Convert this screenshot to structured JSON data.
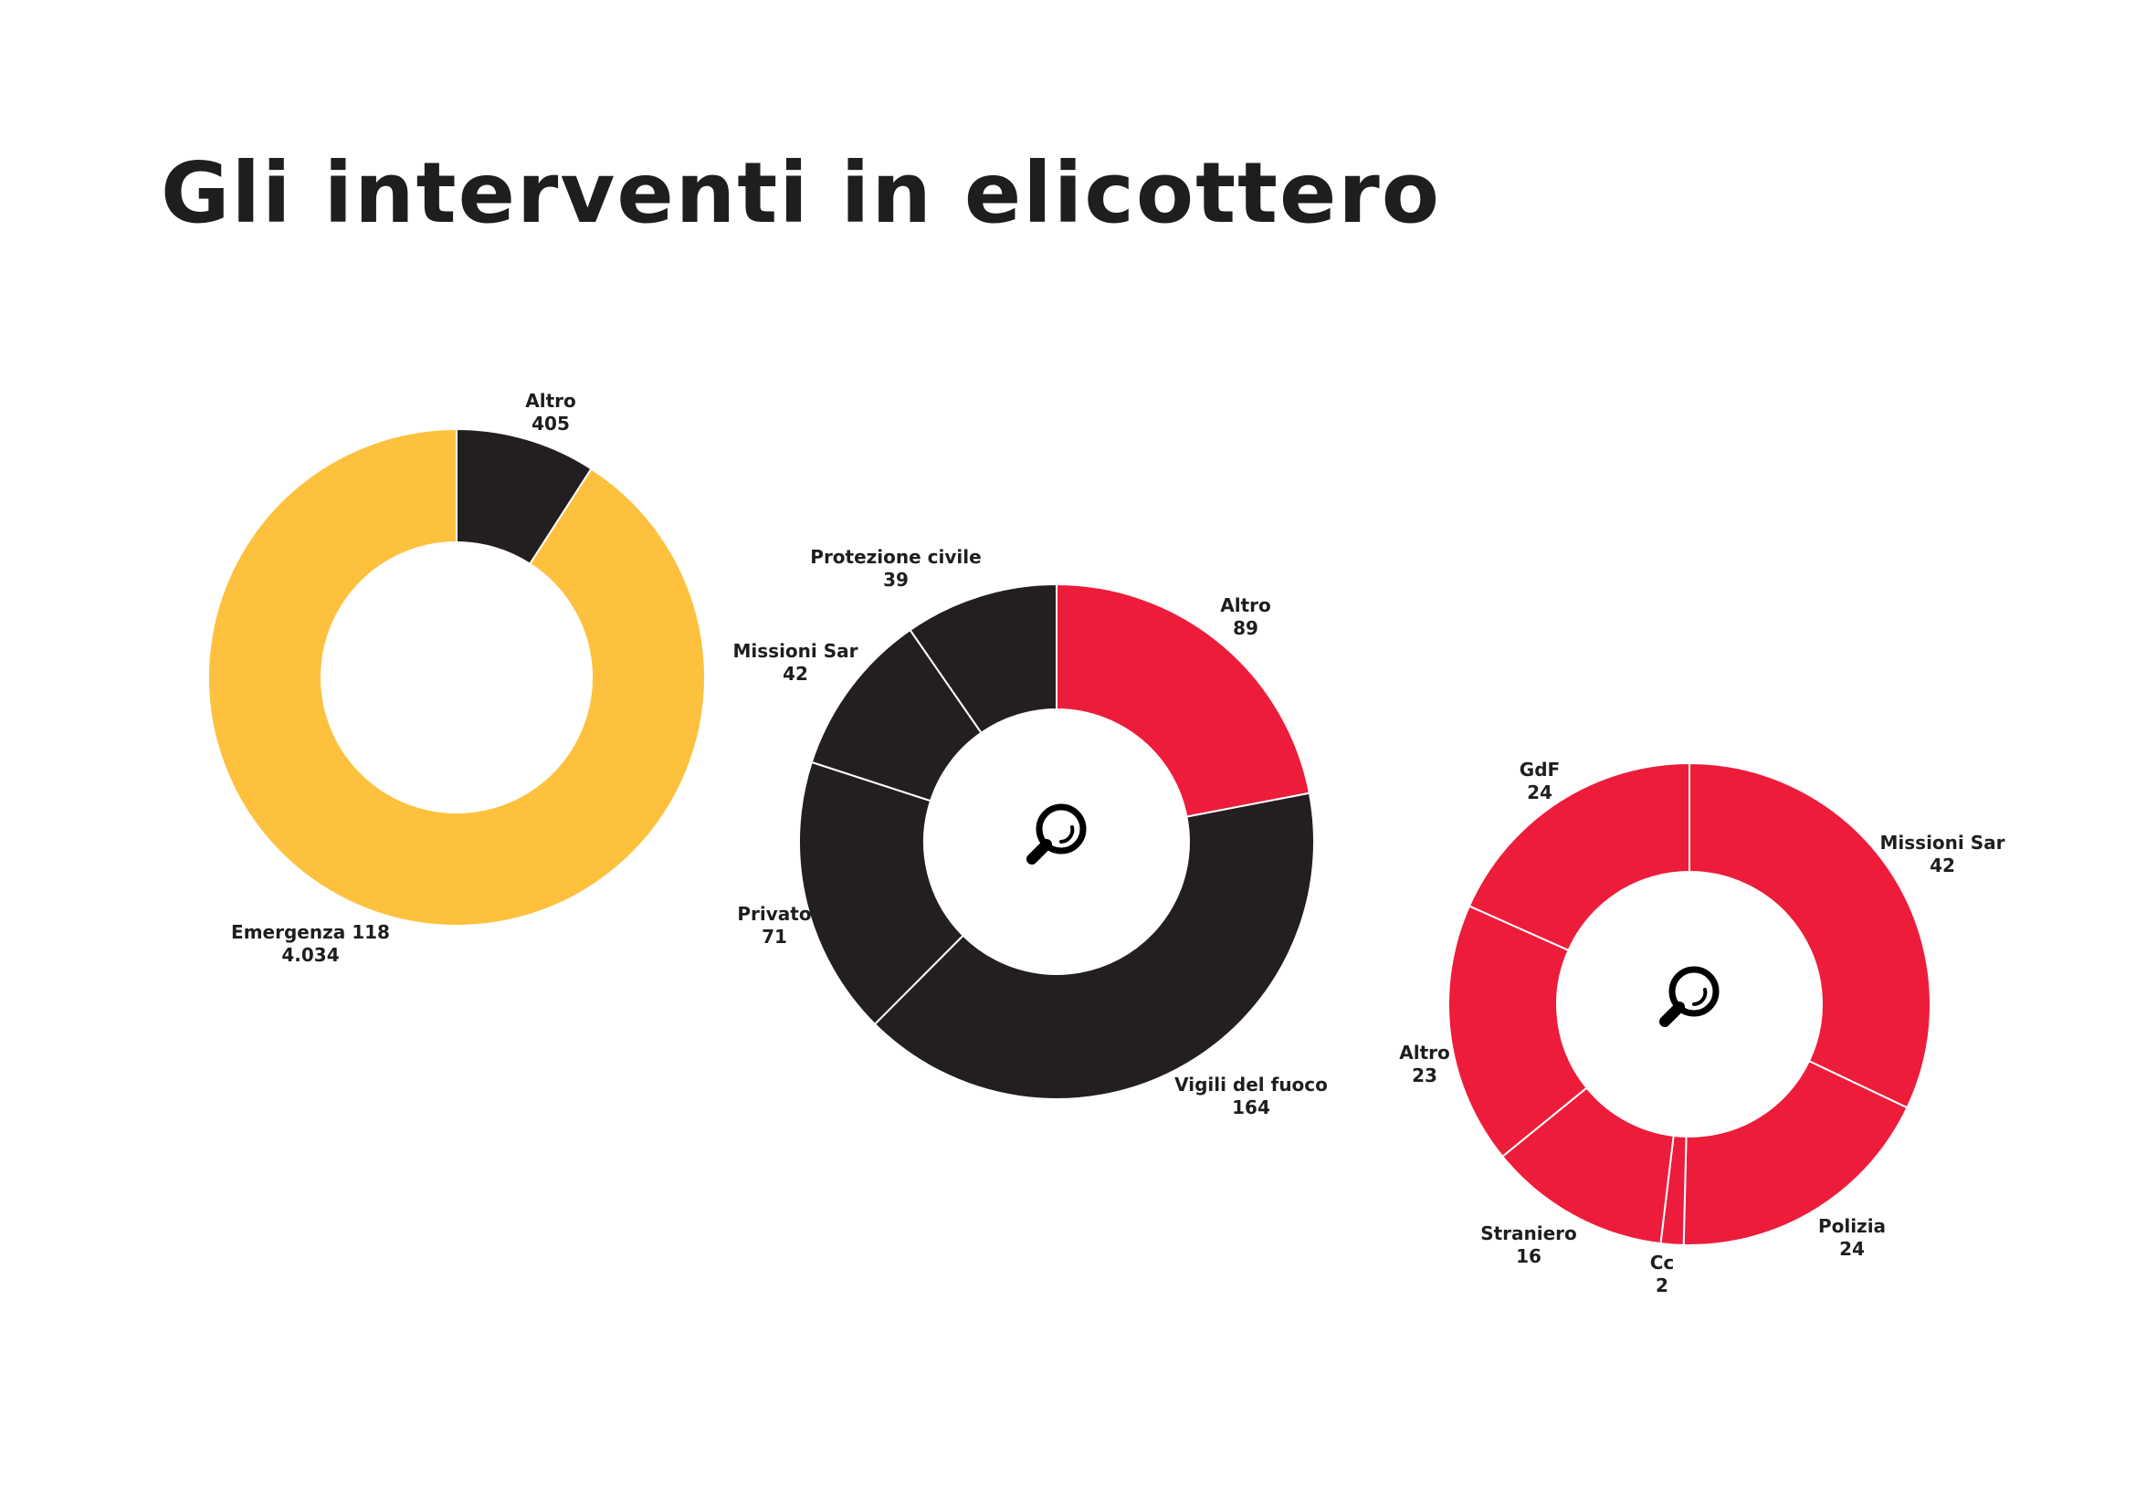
{
  "title": "Gli interventi in elicottero",
  "colors": {
    "yellow": "#fdc13e",
    "black": "#231f20",
    "red": "#ed1c3a",
    "text": "#1e1e1e"
  },
  "chart_data": [
    {
      "type": "pie",
      "variant": "donut",
      "slices": [
        {
          "label": "Altro",
          "value_text": "405",
          "value": 405,
          "color": "#231f20"
        },
        {
          "label": "Emergenza 118",
          "value_text": "4.034",
          "value": 4034,
          "color": "#fdc13e"
        }
      ]
    },
    {
      "type": "pie",
      "variant": "donut",
      "center_icon": "magnifier-icon",
      "slices": [
        {
          "label": "Altro",
          "value_text": "89",
          "value": 89,
          "color": "#ed1c3a"
        },
        {
          "label": "Vigili del fuoco",
          "value_text": "164",
          "value": 164,
          "color": "#231f20"
        },
        {
          "label": "Privato",
          "value_text": "71",
          "value": 71,
          "color": "#231f20"
        },
        {
          "label": "Missioni Sar",
          "value_text": "42",
          "value": 42,
          "color": "#231f20"
        },
        {
          "label": "Protezione civile",
          "value_text": "39",
          "value": 39,
          "color": "#231f20"
        }
      ]
    },
    {
      "type": "pie",
      "variant": "donut",
      "center_icon": "magnifier-icon",
      "slices": [
        {
          "label": "Missioni Sar",
          "value_text": "42",
          "value": 42,
          "color": "#ed1c3a"
        },
        {
          "label": "Polizia",
          "value_text": "24",
          "value": 24,
          "color": "#ed1c3a"
        },
        {
          "label": "Cc",
          "value_text": "2",
          "value": 2,
          "color": "#ed1c3a"
        },
        {
          "label": "Straniero",
          "value_text": "16",
          "value": 16,
          "color": "#ed1c3a"
        },
        {
          "label": "Altro",
          "value_text": "23",
          "value": 23,
          "color": "#ed1c3a"
        },
        {
          "label": "GdF",
          "value_text": "24",
          "value": 24,
          "color": "#ed1c3a"
        }
      ]
    }
  ]
}
